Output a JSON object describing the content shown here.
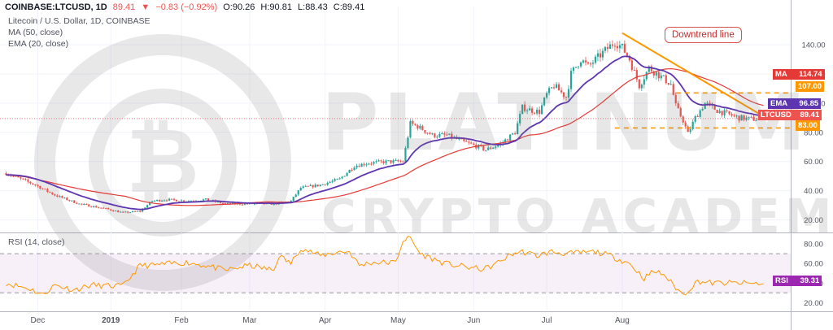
{
  "header": {
    "symbol": "COINBASE:LTCUSD, 1D",
    "last": "89.41",
    "change": "−0.83 (−0.92%)",
    "ohlc_o": "O:90.26",
    "ohlc_h": "H:90.81",
    "ohlc_l": "L:88.43",
    "ohlc_c": "C:89.41",
    "title": "Litecoin / U.S. Dollar, 1D, COINBASE",
    "ma_label": "MA (50, close)",
    "ema_label": "EMA (20, close)",
    "rsi_label": "RSI (14, close)"
  },
  "watermark": {
    "line1": "PLATINUM",
    "line2": "CRYPTO ACADEMY"
  },
  "annotation": "Downtrend line",
  "price_tags": {
    "ma": {
      "label": "MA",
      "value": "114.74",
      "color": "#e53935"
    },
    "resistance": {
      "value": "107.00",
      "color": "#ff9800"
    },
    "ema": {
      "label": "EMA",
      "value": "96.85",
      "color": "#5e35b1"
    },
    "last": {
      "label": "LTCUSD",
      "value": "89.41",
      "color": "#ef5350"
    },
    "support": {
      "value": "83.00",
      "color": "#ff9800"
    },
    "rsi": {
      "label": "RSI",
      "value": "39.31",
      "color": "#9c27b0"
    }
  },
  "colors": {
    "up": "#26a69a",
    "down": "#ef5350",
    "ema": "#5e35b1",
    "ma": "#e53935",
    "rsi": "#ff9800",
    "trendline": "#ff9800",
    "levels": "#ff9800"
  },
  "chart_data": [
    {
      "type": "candlestick",
      "title": "Litecoin / U.S. Dollar, 1D, COINBASE",
      "ylim": [
        12,
        155
      ],
      "y_ticks": [
        "20.00",
        "40.00",
        "60.00",
        "80.00",
        "100.00",
        "120.00",
        "140.00"
      ],
      "x_ticks": [
        "Dec",
        "2019",
        "Feb",
        "Mar",
        "Apr",
        "May",
        "Jun",
        "Jul",
        "Aug"
      ],
      "series": [
        {
          "name": "LTCUSD",
          "control_points": [
            [
              0,
              52
            ],
            [
              12,
              44
            ],
            [
              20,
              37
            ],
            [
              30,
              31
            ],
            [
              40,
              28
            ],
            [
              48,
              25
            ],
            [
              55,
              26
            ],
            [
              60,
              33
            ],
            [
              66,
              34
            ],
            [
              74,
              33
            ],
            [
              82,
              34
            ],
            [
              90,
              31
            ],
            [
              100,
              31
            ],
            [
              110,
              31
            ],
            [
              117,
              33
            ],
            [
              121,
              42
            ],
            [
              129,
              44
            ],
            [
              137,
              48
            ],
            [
              143,
              57
            ],
            [
              149,
              59
            ],
            [
              157,
              60
            ],
            [
              163,
              60
            ],
            [
              166,
              86
            ],
            [
              169,
              84
            ],
            [
              175,
              78
            ],
            [
              181,
              78
            ],
            [
              187,
              74
            ],
            [
              194,
              70
            ],
            [
              197,
              68
            ],
            [
              203,
              72
            ],
            [
              209,
              80
            ],
            [
              212,
              97
            ],
            [
              216,
              95
            ],
            [
              219,
              94
            ],
            [
              222,
              106
            ],
            [
              225,
              112
            ],
            [
              230,
              104
            ],
            [
              232,
              120
            ],
            [
              236,
              130
            ],
            [
              239,
              125
            ],
            [
              246,
              136
            ],
            [
              250,
              142
            ],
            [
              253,
              138
            ],
            [
              256,
              130
            ],
            [
              260,
              112
            ],
            [
              264,
              124
            ],
            [
              269,
              118
            ],
            [
              273,
              113
            ],
            [
              275,
              98
            ],
            [
              278,
              88
            ],
            [
              280,
              79
            ],
            [
              283,
              90
            ],
            [
              287,
              100
            ],
            [
              292,
              95
            ],
            [
              297,
              92
            ],
            [
              301,
              90
            ],
            [
              306,
              89
            ],
            [
              311,
              89.41
            ]
          ]
        },
        {
          "name": "EMA (20, close)",
          "last": 96.85
        },
        {
          "name": "MA (50, close)",
          "last": 114.74
        }
      ],
      "levels": [
        107,
        83
      ],
      "trendline": {
        "from": [
          253,
          148
        ],
        "to": [
          311,
          91
        ]
      },
      "annotations": [
        "Downtrend line"
      ]
    },
    {
      "type": "line",
      "title": "RSI (14, close)",
      "ylim": [
        12,
        90
      ],
      "y_ticks": [
        "20.00",
        "40.00",
        "60.00",
        "80.00"
      ],
      "bands": [
        30,
        70
      ],
      "series": [
        {
          "name": "RSI (14, close)",
          "control_points": [
            [
              0,
              40
            ],
            [
              10,
              34
            ],
            [
              15,
              28
            ],
            [
              20,
              38
            ],
            [
              28,
              33
            ],
            [
              35,
              38
            ],
            [
              42,
              37
            ],
            [
              48,
              37
            ],
            [
              55,
              58
            ],
            [
              60,
              58
            ],
            [
              68,
              60
            ],
            [
              74,
              61
            ],
            [
              82,
              58
            ],
            [
              90,
              53
            ],
            [
              100,
              58
            ],
            [
              110,
              53
            ],
            [
              112,
              68
            ],
            [
              117,
              60
            ],
            [
              121,
              76
            ],
            [
              129,
              68
            ],
            [
              137,
              72
            ],
            [
              141,
              72
            ],
            [
              145,
              58
            ],
            [
              150,
              61
            ],
            [
              160,
              61
            ],
            [
              163,
              84
            ],
            [
              166,
              86
            ],
            [
              170,
              70
            ],
            [
              180,
              60
            ],
            [
              190,
              56
            ],
            [
              196,
              54
            ],
            [
              200,
              58
            ],
            [
              204,
              64
            ],
            [
              208,
              70
            ],
            [
              212,
              72
            ],
            [
              218,
              68
            ],
            [
              224,
              72
            ],
            [
              230,
              70
            ],
            [
              236,
              71
            ],
            [
              242,
              72
            ],
            [
              248,
              68
            ],
            [
              256,
              60
            ],
            [
              262,
              45
            ],
            [
              266,
              52
            ],
            [
              270,
              49
            ],
            [
              274,
              38
            ],
            [
              278,
              28
            ],
            [
              284,
              42
            ],
            [
              290,
              40
            ],
            [
              300,
              40
            ],
            [
              311,
              39.31
            ]
          ]
        }
      ]
    }
  ]
}
